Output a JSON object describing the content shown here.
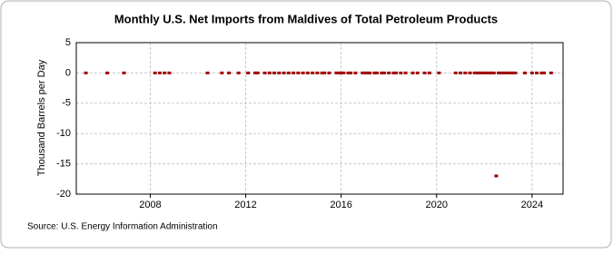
{
  "chart_data": {
    "type": "scatter",
    "title": "Monthly U.S. Net Imports from Maldives of Total Petroleum Products",
    "y_label": "Thousand Barrels per Day",
    "source": "Source: U.S. Energy Information Administration",
    "x": [
      2005.3,
      2006.2,
      2006.9,
      2008.2,
      2008.4,
      2008.6,
      2008.8,
      2010.4,
      2011.0,
      2011.3,
      2011.7,
      2012.1,
      2012.4,
      2012.5,
      2012.8,
      2013.0,
      2013.2,
      2013.4,
      2013.6,
      2013.8,
      2014.0,
      2014.2,
      2014.4,
      2014.6,
      2014.8,
      2015.0,
      2015.2,
      2015.3,
      2015.5,
      2015.8,
      2015.9,
      2016.0,
      2016.1,
      2016.3,
      2016.4,
      2016.6,
      2016.9,
      2017.0,
      2017.1,
      2017.2,
      2017.4,
      2017.5,
      2017.7,
      2017.8,
      2018.0,
      2018.2,
      2018.3,
      2018.5,
      2018.7,
      2019.0,
      2019.2,
      2019.5,
      2019.7,
      2020.1,
      2020.8,
      2021.0,
      2021.2,
      2021.4,
      2021.6,
      2021.7,
      2021.8,
      2021.9,
      2022.0,
      2022.1,
      2022.2,
      2022.3,
      2022.4,
      2022.5,
      2022.6,
      2022.7,
      2022.8,
      2022.9,
      2023.0,
      2023.1,
      2023.2,
      2023.3,
      2023.7,
      2024.0,
      2024.2,
      2024.4,
      2024.5,
      2024.8
    ],
    "values": [
      0,
      0,
      0,
      0,
      0,
      0,
      0,
      0,
      0,
      0,
      0,
      0,
      0,
      0,
      0,
      0,
      0,
      0,
      0,
      0,
      0,
      0,
      0,
      0,
      0,
      0,
      0,
      0,
      0,
      0,
      0,
      0,
      0,
      0,
      0,
      0,
      0,
      0,
      0,
      0,
      0,
      0,
      0,
      0,
      0,
      0,
      0,
      0,
      0,
      0,
      0,
      0,
      0,
      0,
      0,
      0,
      0,
      0,
      0,
      0,
      0,
      0,
      0,
      0,
      0,
      0,
      0,
      -17,
      0,
      0,
      0,
      0,
      0,
      0,
      0,
      0,
      0,
      0,
      0,
      0,
      0,
      0
    ],
    "color": "#a00000",
    "xlim": [
      2004.9,
      2025.3
    ],
    "xticks": [
      2008,
      2012,
      2016,
      2020,
      2024
    ],
    "ylim": [
      -20,
      5
    ],
    "yticks": [
      -20,
      -15,
      -10,
      -5,
      0,
      5
    ],
    "grid": true
  }
}
